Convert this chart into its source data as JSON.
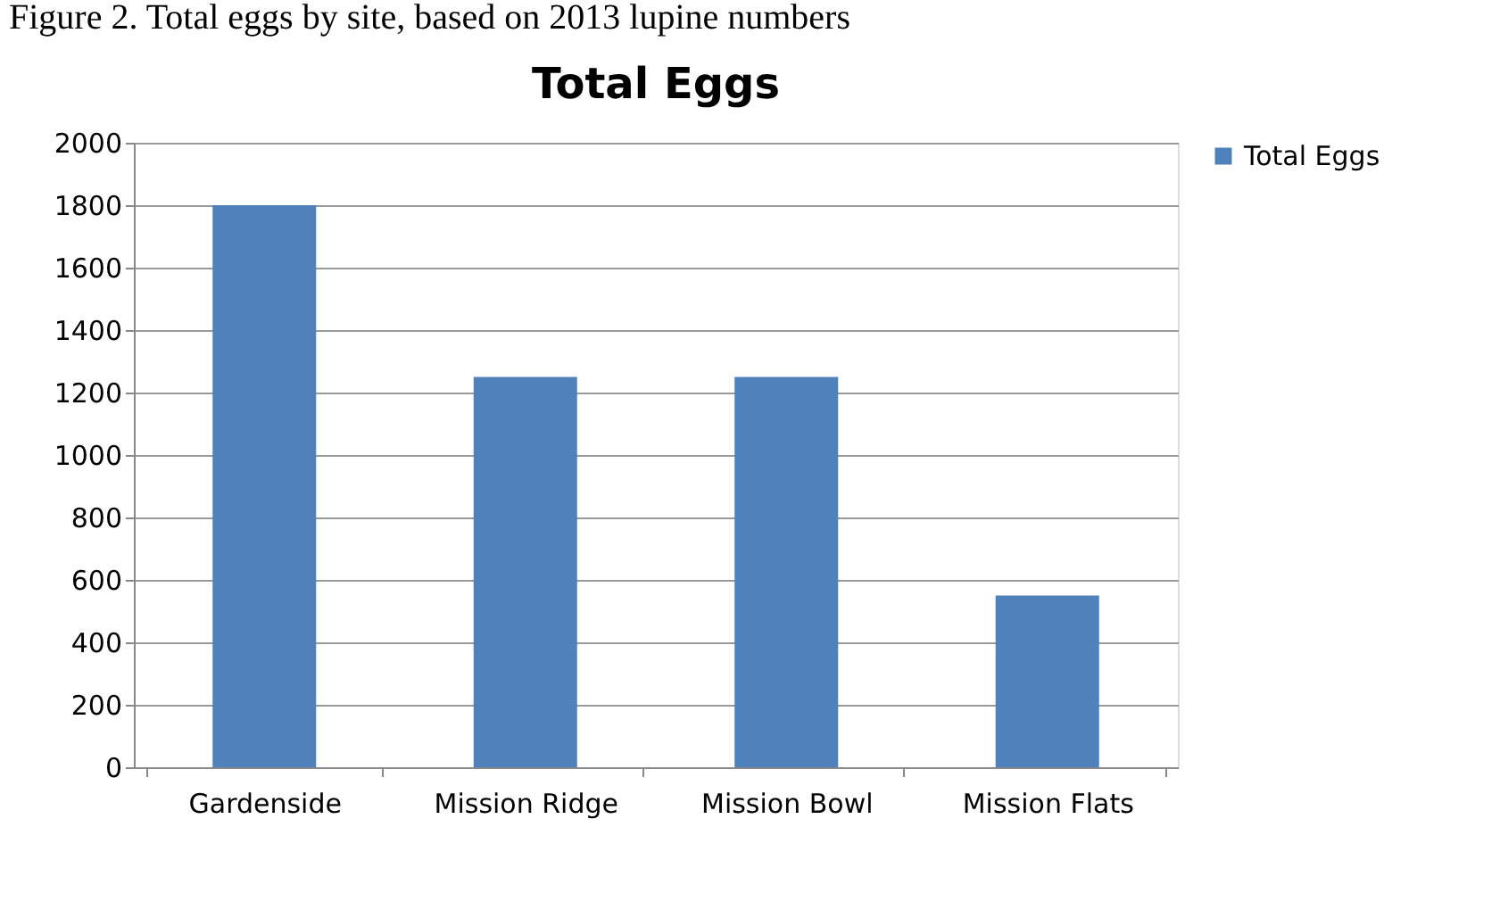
{
  "chart_data": {
    "type": "bar",
    "title": "Total Eggs",
    "annotations": [
      "Figure 2. Total eggs by site, based on 2013 lupine numbers"
    ],
    "categories": [
      "Gardenside",
      "Mission Ridge",
      "Mission Bowl",
      "Mission Flats"
    ],
    "series": [
      {
        "name": "Total Eggs",
        "color": "#4f81bd",
        "values": [
          1800,
          1250,
          1250,
          550
        ]
      }
    ],
    "ylim": [
      0,
      2000
    ],
    "yticks": [
      0,
      200,
      400,
      600,
      800,
      1000,
      1200,
      1400,
      1600,
      1800,
      2000
    ],
    "grid": "y",
    "legend": "right"
  }
}
